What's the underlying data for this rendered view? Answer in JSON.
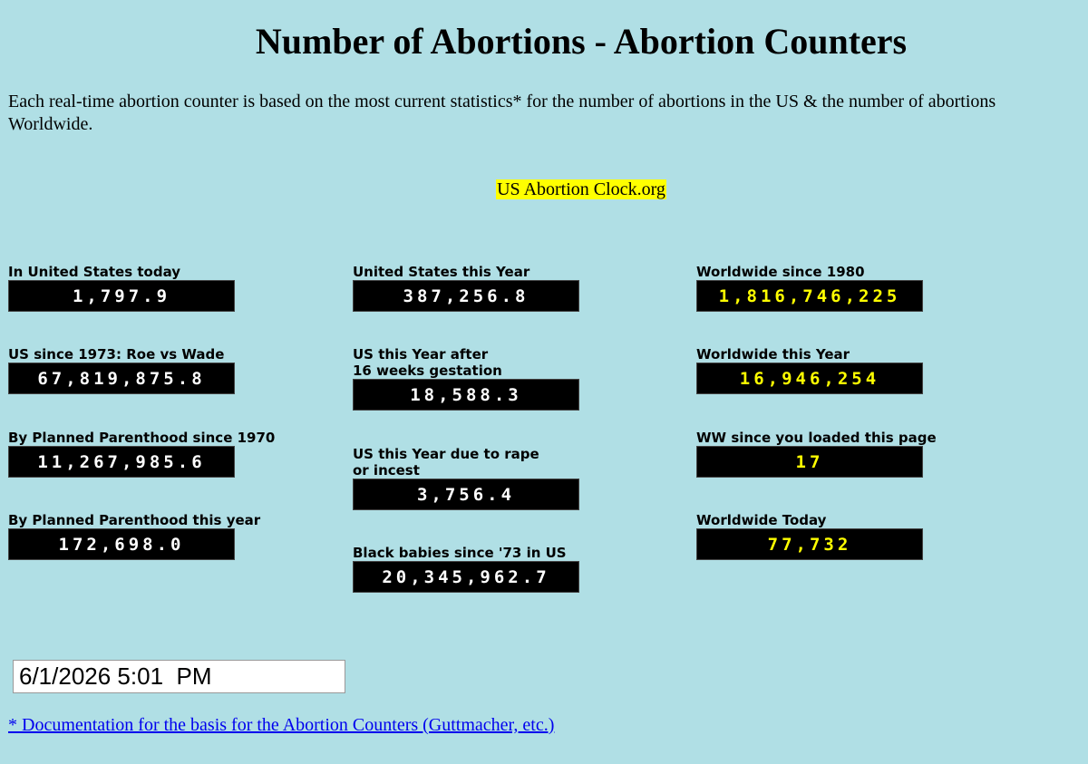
{
  "header": {
    "title": "Number of Abortions - Abortion Counters",
    "intro": "Each real-time abortion counter is based on the most current statistics* for the number of abortions in the US & the number of abortions Worldwide."
  },
  "clock_link": "US Abortion Clock.org",
  "columns": [
    {
      "counters": [
        {
          "label_lines": [
            "In United States today"
          ],
          "value": "1,797.9"
        },
        {
          "label_lines": [
            "US since 1973: Roe vs Wade"
          ],
          "value": "67,819,875.8"
        },
        {
          "label_lines": [
            "By Planned Parenthood since 1970"
          ],
          "value": "11,267,985.6"
        },
        {
          "label_lines": [
            "By Planned Parenthood this year"
          ],
          "value": "172,698.0"
        }
      ]
    },
    {
      "counters": [
        {
          "label_lines": [
            "United States this Year"
          ],
          "value": "387,256.8"
        },
        {
          "label_lines": [
            "US this Year after",
            "16 weeks gestation"
          ],
          "value": "18,588.3"
        },
        {
          "label_lines": [
            "US this Year due to rape",
            "or incest"
          ],
          "value": "3,756.4"
        },
        {
          "label_lines": [
            "Black babies since '73 in US"
          ],
          "value": "20,345,962.7"
        }
      ]
    },
    {
      "counters": [
        {
          "label_lines": [
            "Worldwide since 1980"
          ],
          "value": "1,816,746,225"
        },
        {
          "label_lines": [
            "Worldwide this Year"
          ],
          "value": "16,946,254"
        },
        {
          "label_lines": [
            "WW since you loaded this page"
          ],
          "value": "17"
        },
        {
          "label_lines": [
            "Worldwide Today"
          ],
          "value": "77,732"
        }
      ]
    }
  ],
  "datetime_value": "6/1/2026 5:01  PM",
  "doc_link": "* Documentation for the basis for the Abortion Counters (Guttmacher, etc.)",
  "colors": {
    "background": "#b0dfe5",
    "us_counter_text": "#ffffff",
    "ww_counter_text": "#ffff00",
    "clock_highlight": "#ffff00"
  }
}
